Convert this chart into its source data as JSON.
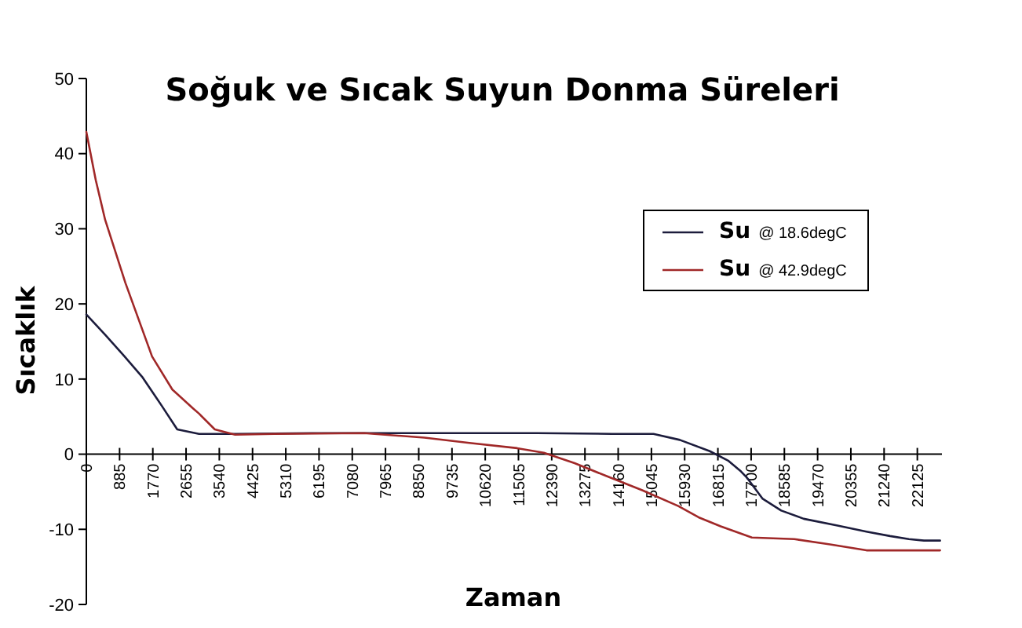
{
  "chart_data": {
    "type": "line",
    "title": "Soğuk ve Sıcak Suyun Donma Süreleri",
    "xlabel": "Zaman",
    "ylabel": "Sıcaklık",
    "xlim": [
      0,
      22780
    ],
    "xticks": [
      0,
      885,
      1770,
      2655,
      3540,
      4425,
      5310,
      6195,
      7080,
      7965,
      8850,
      9735,
      10620,
      11505,
      12390,
      13275,
      14160,
      15045,
      15930,
      16815,
      17700,
      18585,
      19470,
      20355,
      21240,
      22125
    ],
    "ylim": [
      -20,
      50
    ],
    "yticks": [
      -20,
      -10,
      0,
      10,
      20,
      30,
      40,
      50
    ],
    "grid": false,
    "legend": "right",
    "marker": "none",
    "line_style": "solid",
    "series": [
      {
        "name": "Su @ 18.6degC",
        "color": "#1c1c3c",
        "x": [
          0,
          500,
          1000,
          1500,
          2000,
          2420,
          3000,
          4000,
          6000,
          8000,
          10000,
          12000,
          14000,
          15100,
          15800,
          16600,
          17100,
          17430,
          17600,
          18000,
          18500,
          19100,
          20000,
          20770,
          21400,
          21900,
          22300,
          22730
        ],
        "values": [
          18.6,
          15.9,
          13.1,
          10.2,
          6.5,
          3.3,
          2.7,
          2.7,
          2.8,
          2.8,
          2.8,
          2.8,
          2.7,
          2.7,
          1.9,
          0.4,
          -0.9,
          -2.3,
          -3.2,
          -5.9,
          -7.5,
          -8.6,
          -9.5,
          -10.3,
          -10.9,
          -11.3,
          -11.5,
          -11.5
        ]
      },
      {
        "name": "Su @ 42.9degC",
        "color": "#a02828",
        "x": [
          0,
          250,
          500,
          1040,
          1750,
          2290,
          2840,
          3000,
          3420,
          3960,
          5000,
          7400,
          9000,
          10200,
          11470,
          12180,
          13000,
          13840,
          14800,
          15760,
          16300,
          16890,
          17720,
          18850,
          19800,
          20770,
          21500,
          22730
        ],
        "values": [
          42.9,
          36.5,
          31.2,
          22.8,
          13,
          8.6,
          6.1,
          5.4,
          3.3,
          2.6,
          2.7,
          2.8,
          2.2,
          1.5,
          0.8,
          0.2,
          -1.2,
          -2.9,
          -4.8,
          -6.9,
          -8.4,
          -9.6,
          -11.1,
          -11.3,
          -12,
          -12.8,
          -12.8,
          -12.8
        ]
      }
    ]
  }
}
